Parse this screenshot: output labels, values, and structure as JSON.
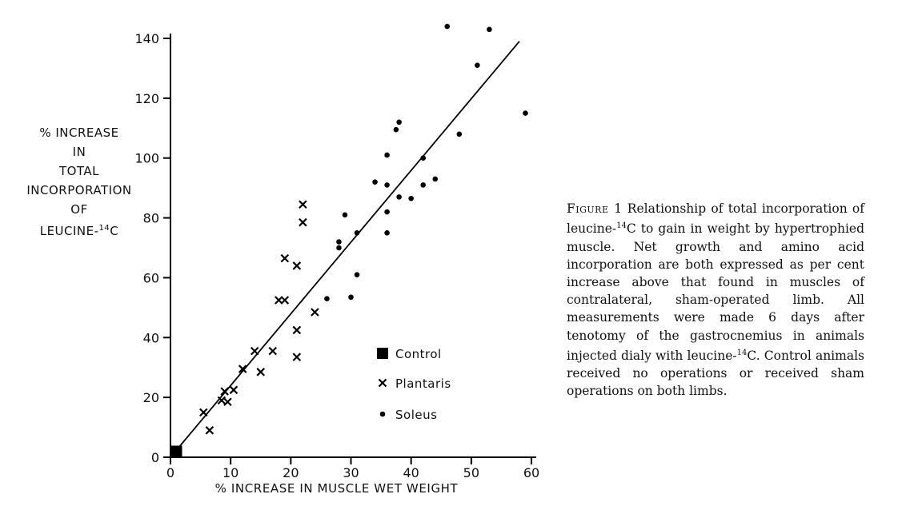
{
  "chart_data": {
    "type": "scatter",
    "xlabel": "% INCREASE IN MUSCLE WET WEIGHT",
    "ylabel_lines": [
      "% INCREASE",
      "IN",
      "TOTAL",
      "INCORPORATION",
      "OF"
    ],
    "ylabel_last": {
      "prefix": "LEUCINE-",
      "sup": "14",
      "suffix": "C"
    },
    "xlim": [
      0,
      60
    ],
    "ylim": [
      0,
      140
    ],
    "xticks": [
      0,
      10,
      20,
      30,
      40,
      50,
      60
    ],
    "yticks": [
      0,
      20,
      40,
      60,
      80,
      100,
      120,
      140
    ],
    "grid": false,
    "legend_position": "center-right inside plot",
    "series": [
      {
        "name": "Control",
        "marker": "filled-square",
        "points": [
          [
            1,
            2
          ]
        ]
      },
      {
        "name": "Plantaris",
        "marker": "x",
        "points": [
          [
            5.5,
            15
          ],
          [
            6.5,
            9
          ],
          [
            8.5,
            19
          ],
          [
            9,
            22
          ],
          [
            9.5,
            18.5
          ],
          [
            10.5,
            22.5
          ],
          [
            12,
            29.5
          ],
          [
            14,
            35.5
          ],
          [
            15,
            28.5
          ],
          [
            17,
            35.5
          ],
          [
            18,
            52.5
          ],
          [
            19,
            52.5
          ],
          [
            19,
            66.5
          ],
          [
            21,
            64
          ],
          [
            21,
            42.5
          ],
          [
            21,
            33.5
          ],
          [
            22,
            78.5
          ],
          [
            22,
            84.5
          ],
          [
            24,
            48.5
          ]
        ]
      },
      {
        "name": "Soleus",
        "marker": "dot",
        "points": [
          [
            26,
            53
          ],
          [
            28,
            70
          ],
          [
            28,
            72
          ],
          [
            29,
            81
          ],
          [
            30,
            53.5
          ],
          [
            31,
            61
          ],
          [
            31,
            75
          ],
          [
            34,
            92
          ],
          [
            36,
            101
          ],
          [
            36,
            91
          ],
          [
            36,
            82
          ],
          [
            36,
            75
          ],
          [
            37.5,
            109.5
          ],
          [
            38,
            112
          ],
          [
            38,
            87
          ],
          [
            40,
            86.5
          ],
          [
            42,
            100
          ],
          [
            42,
            91
          ],
          [
            44,
            93
          ],
          [
            46,
            144
          ],
          [
            48,
            108
          ],
          [
            51,
            131
          ],
          [
            53,
            143
          ],
          [
            59,
            115
          ]
        ]
      }
    ],
    "fit_line": {
      "x": [
        0,
        58
      ],
      "y": [
        0,
        139
      ]
    }
  },
  "caption": {
    "label": "Figure 1",
    "part1": " Relationship of total incorporation of leucine-",
    "sup1": "14",
    "part2": "C to gain in weight by hypertrophied muscle. Net growth and amino acid incorporation are both expressed as per cent increase above that found in muscles of contralateral, sham-operated limb. All measurements were made 6 days after tenotomy of the gastrocnemius in animals injected dialy with leucine-",
    "sup2": "14",
    "part3": "C. Control animals received no operations or received sham operations on both limbs."
  }
}
